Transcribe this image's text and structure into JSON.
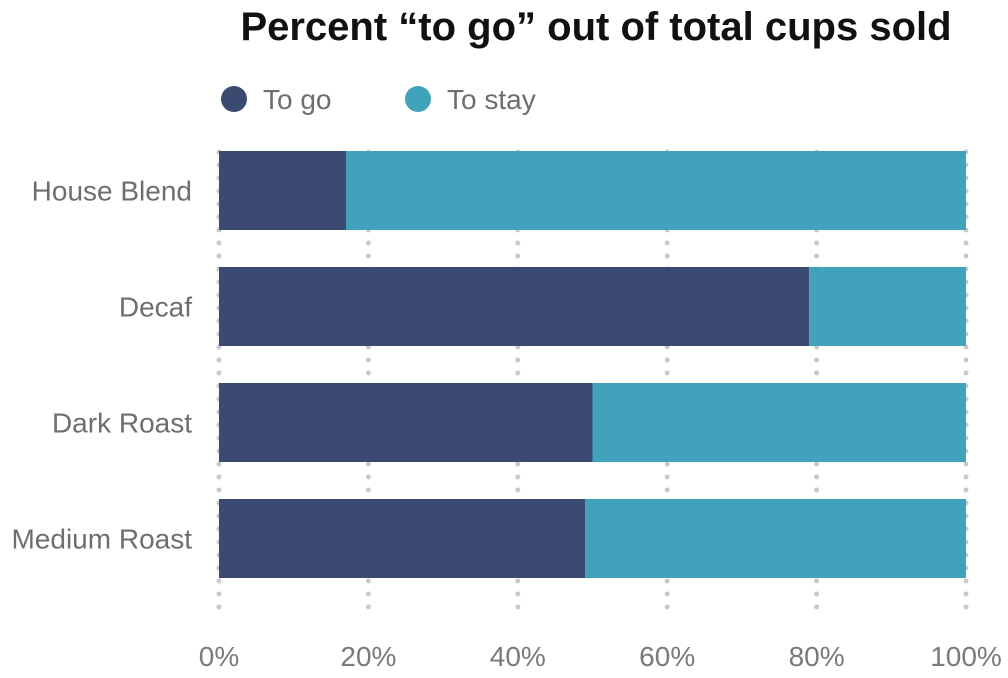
{
  "colors": {
    "to_go": "#3b4a70",
    "to_stay": "#41a3bb"
  },
  "chart_data": {
    "type": "bar",
    "orientation": "horizontal",
    "stacked": true,
    "title": "Percent “to go” out of total cups sold",
    "categories": [
      "House Blend",
      "Decaf",
      "Dark Roast",
      "Medium Roast"
    ],
    "series": [
      {
        "name": "To go",
        "color": "#3b4a70",
        "values": [
          17,
          79,
          50,
          49
        ]
      },
      {
        "name": "To stay",
        "color": "#41a3bb",
        "values": [
          83,
          21,
          50,
          51
        ]
      }
    ],
    "xlim": [
      0,
      100
    ],
    "xticks": [
      0,
      20,
      40,
      60,
      80,
      100
    ],
    "xtick_labels": [
      "0%",
      "20%",
      "40%",
      "60%",
      "80%",
      "100%"
    ],
    "grid": true,
    "legend_position": "top-left"
  }
}
